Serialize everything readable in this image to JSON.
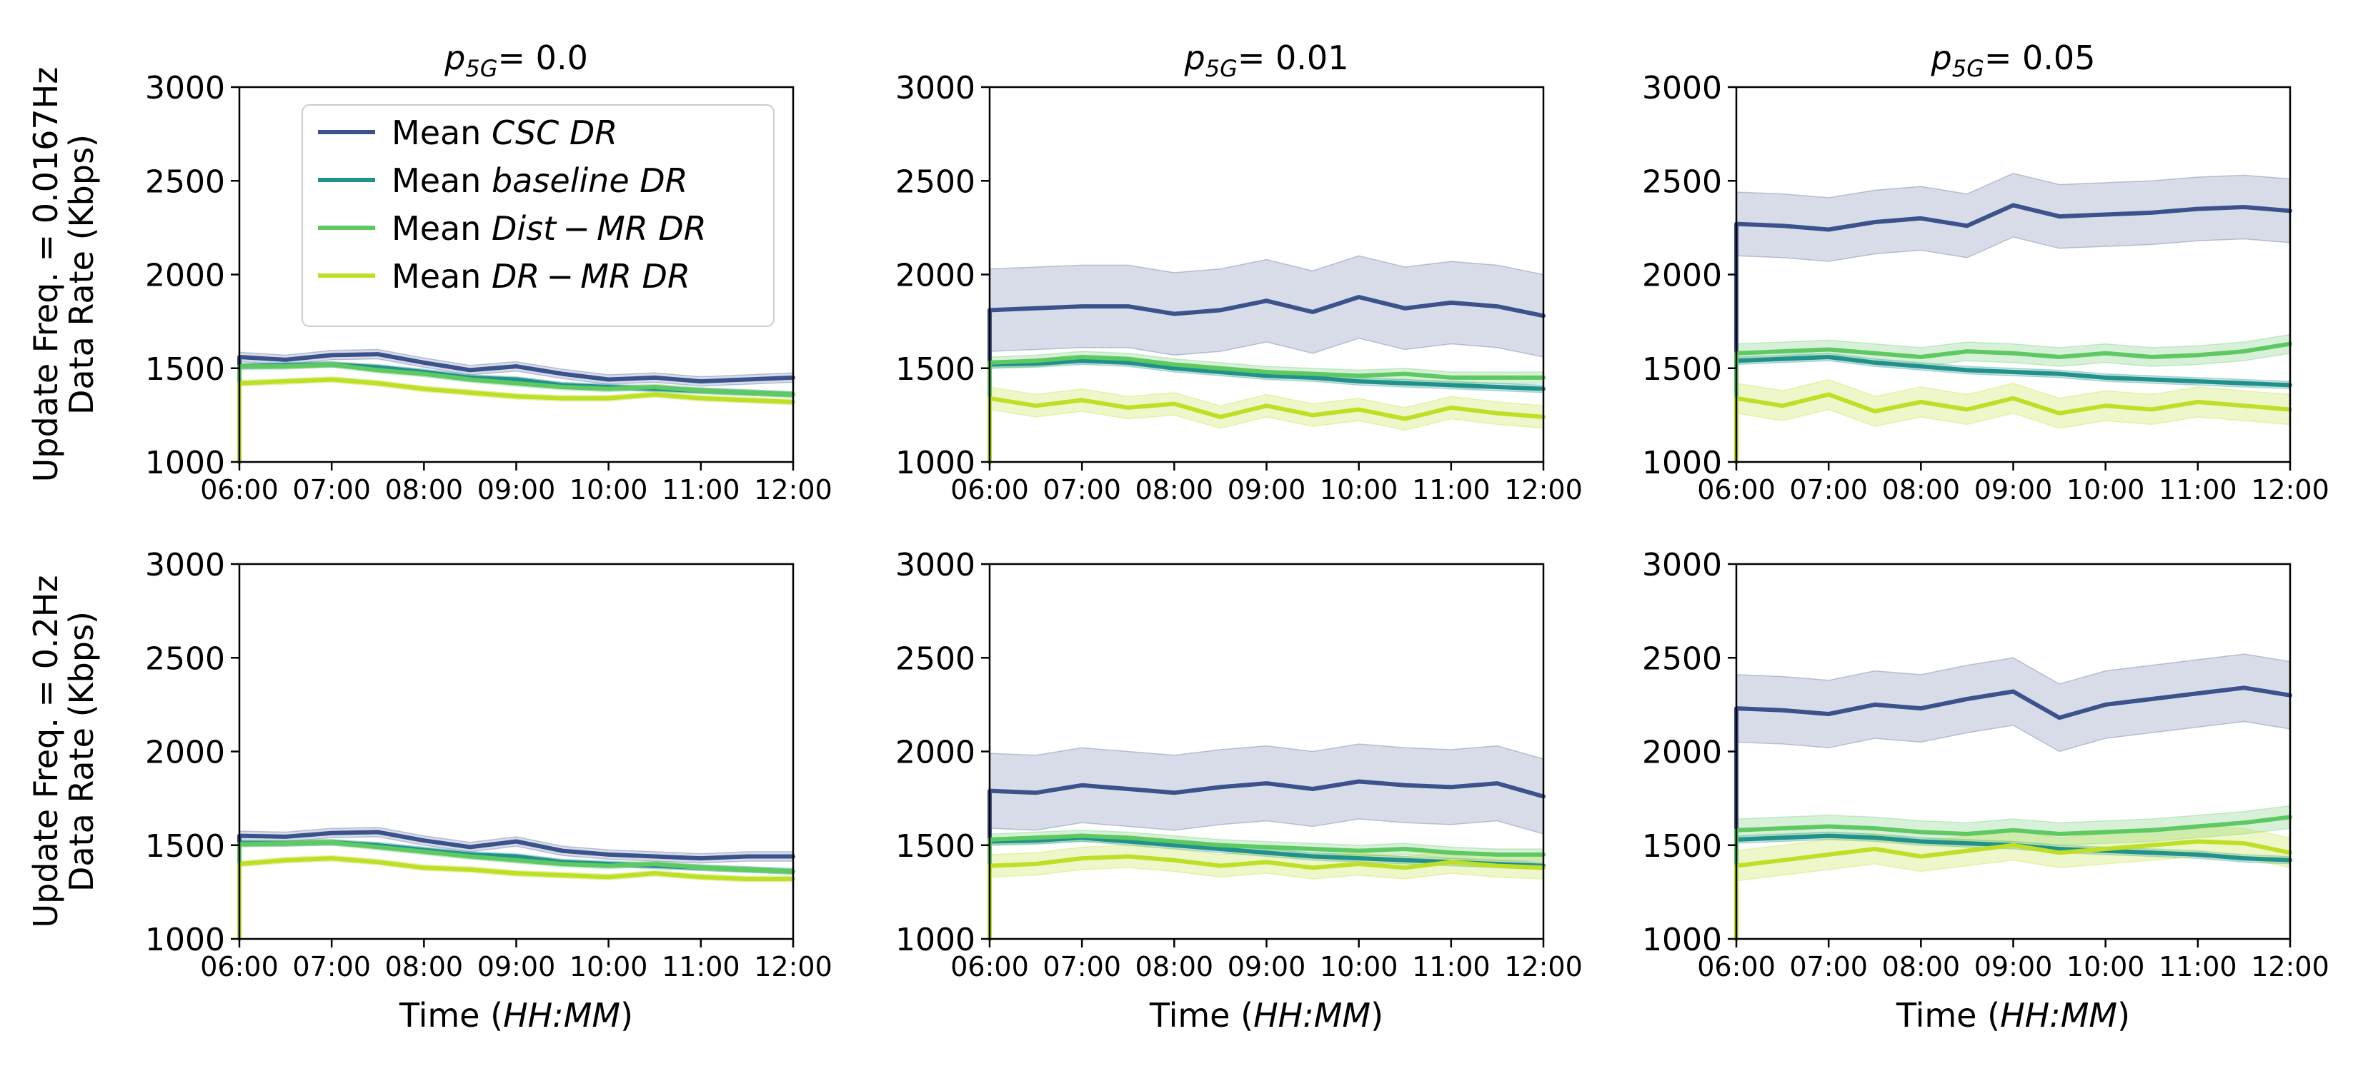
{
  "colors": {
    "csc": "#3b528b",
    "baseline": "#21918c",
    "dist": "#5ec962",
    "drmr": "#bddf26",
    "axis": "#000000"
  },
  "legend": [
    {
      "prefix": "Mean ",
      "name": "CSC DR",
      "series": "csc"
    },
    {
      "prefix": "Mean ",
      "name": "baseline DR",
      "series": "baseline"
    },
    {
      "prefix": "Mean ",
      "name": "Dist − MR DR",
      "series": "dist"
    },
    {
      "prefix": "Mean ",
      "name": "DR − MR DR",
      "series": "drmr"
    }
  ],
  "chart_data": [
    {
      "type": "line",
      "title": {
        "var": "p",
        "sub": "5G",
        "rest": "= 0.0"
      },
      "ylabel_lines": [
        "Update Freq. = 0.0167Hz",
        "Data Rate (Kbps)"
      ],
      "xlabel": "",
      "x_ticks": [
        "06:00",
        "07:00",
        "08:00",
        "09:00",
        "10:00",
        "11:00",
        "12:00"
      ],
      "y_ticks": [
        "1000",
        "1500",
        "2000",
        "2500",
        "3000"
      ],
      "xlim": [
        0,
        6
      ],
      "ylim": [
        1000,
        3000
      ],
      "x_hours": [
        0,
        0.5,
        1,
        1.5,
        2,
        2.5,
        3,
        3.5,
        4,
        4.5,
        5,
        5.5,
        6
      ],
      "series": [
        {
          "key": "csc",
          "name": "Mean CSC DR",
          "values": [
            1560,
            1545,
            1570,
            1575,
            1530,
            1490,
            1510,
            1470,
            1440,
            1450,
            1430,
            1440,
            1450
          ],
          "band": 25
        },
        {
          "key": "baseline",
          "name": "Mean baseline DR",
          "values": [
            1510,
            1515,
            1520,
            1505,
            1480,
            1450,
            1440,
            1410,
            1400,
            1390,
            1380,
            1370,
            1360
          ],
          "band": 15
        },
        {
          "key": "dist",
          "name": "Mean Dist-MR DR",
          "values": [
            1510,
            1510,
            1520,
            1490,
            1470,
            1440,
            1420,
            1400,
            1390,
            1400,
            1380,
            1370,
            1360
          ],
          "band": 15
        },
        {
          "key": "drmr",
          "name": "Mean DR-MR DR",
          "values": [
            1420,
            1430,
            1440,
            1420,
            1390,
            1370,
            1350,
            1340,
            1340,
            1360,
            1340,
            1330,
            1320
          ],
          "band": 15
        }
      ]
    },
    {
      "type": "line",
      "title": {
        "var": "p",
        "sub": "5G",
        "rest": "= 0.01"
      },
      "ylabel_lines": [],
      "xlabel": "",
      "x_ticks": [
        "06:00",
        "07:00",
        "08:00",
        "09:00",
        "10:00",
        "11:00",
        "12:00"
      ],
      "y_ticks": [
        "1000",
        "1500",
        "2000",
        "2500",
        "3000"
      ],
      "xlim": [
        0,
        6
      ],
      "ylim": [
        1000,
        3000
      ],
      "x_hours": [
        0,
        0.5,
        1,
        1.5,
        2,
        2.5,
        3,
        3.5,
        4,
        4.5,
        5,
        5.5,
        6
      ],
      "series": [
        {
          "key": "csc",
          "name": "Mean CSC DR",
          "values": [
            1810,
            1820,
            1830,
            1830,
            1790,
            1810,
            1860,
            1800,
            1880,
            1820,
            1850,
            1830,
            1780
          ],
          "band": 220
        },
        {
          "key": "baseline",
          "name": "Mean baseline DR",
          "values": [
            1520,
            1525,
            1540,
            1530,
            1500,
            1480,
            1460,
            1450,
            1430,
            1420,
            1410,
            1400,
            1390
          ],
          "band": 20
        },
        {
          "key": "dist",
          "name": "Mean Dist-MR DR",
          "values": [
            1530,
            1540,
            1560,
            1550,
            1520,
            1500,
            1480,
            1470,
            1460,
            1470,
            1450,
            1450,
            1450
          ],
          "band": 30
        },
        {
          "key": "drmr",
          "name": "Mean DR-MR DR",
          "values": [
            1340,
            1300,
            1330,
            1290,
            1310,
            1240,
            1300,
            1250,
            1280,
            1230,
            1290,
            1260,
            1240
          ],
          "band": 60
        }
      ]
    },
    {
      "type": "line",
      "title": {
        "var": "p",
        "sub": "5G",
        "rest": "= 0.05"
      },
      "ylabel_lines": [],
      "xlabel": "",
      "x_ticks": [
        "06:00",
        "07:00",
        "08:00",
        "09:00",
        "10:00",
        "11:00",
        "12:00"
      ],
      "y_ticks": [
        "1000",
        "1500",
        "2000",
        "2500",
        "3000"
      ],
      "xlim": [
        0,
        6
      ],
      "ylim": [
        1000,
        3000
      ],
      "x_hours": [
        0,
        0.5,
        1,
        1.5,
        2,
        2.5,
        3,
        3.5,
        4,
        4.5,
        5,
        5.5,
        6
      ],
      "series": [
        {
          "key": "csc",
          "name": "Mean CSC DR",
          "values": [
            2270,
            2260,
            2240,
            2280,
            2300,
            2260,
            2370,
            2310,
            2320,
            2330,
            2350,
            2360,
            2340
          ],
          "band": 170
        },
        {
          "key": "baseline",
          "name": "Mean baseline DR",
          "values": [
            1540,
            1550,
            1560,
            1530,
            1510,
            1490,
            1480,
            1470,
            1450,
            1440,
            1430,
            1420,
            1410
          ],
          "band": 20
        },
        {
          "key": "dist",
          "name": "Mean Dist-MR DR",
          "values": [
            1580,
            1590,
            1600,
            1580,
            1560,
            1590,
            1580,
            1560,
            1580,
            1560,
            1570,
            1590,
            1630
          ],
          "band": 50
        },
        {
          "key": "drmr",
          "name": "Mean DR-MR DR",
          "values": [
            1340,
            1300,
            1360,
            1270,
            1320,
            1280,
            1340,
            1260,
            1300,
            1280,
            1320,
            1300,
            1280
          ],
          "band": 80
        }
      ]
    },
    {
      "type": "line",
      "title": null,
      "ylabel_lines": [
        "Update Freq. = 0.2Hz",
        "Data Rate (Kbps)"
      ],
      "xlabel": "Time (HH:MM)",
      "x_ticks": [
        "06:00",
        "07:00",
        "08:00",
        "09:00",
        "10:00",
        "11:00",
        "12:00"
      ],
      "y_ticks": [
        "1000",
        "1500",
        "2000",
        "2500",
        "3000"
      ],
      "xlim": [
        0,
        6
      ],
      "ylim": [
        1000,
        3000
      ],
      "x_hours": [
        0,
        0.5,
        1,
        1.5,
        2,
        2.5,
        3,
        3.5,
        4,
        4.5,
        5,
        5.5,
        6
      ],
      "series": [
        {
          "key": "csc",
          "name": "Mean CSC DR",
          "values": [
            1550,
            1545,
            1565,
            1570,
            1525,
            1490,
            1520,
            1470,
            1450,
            1440,
            1430,
            1440,
            1440
          ],
          "band": 25
        },
        {
          "key": "baseline",
          "name": "Mean baseline DR",
          "values": [
            1510,
            1510,
            1515,
            1500,
            1475,
            1450,
            1440,
            1410,
            1400,
            1390,
            1380,
            1370,
            1360
          ],
          "band": 15
        },
        {
          "key": "dist",
          "name": "Mean Dist-MR DR",
          "values": [
            1505,
            1510,
            1515,
            1490,
            1465,
            1440,
            1420,
            1400,
            1390,
            1400,
            1380,
            1370,
            1360
          ],
          "band": 15
        },
        {
          "key": "drmr",
          "name": "Mean DR-MR DR",
          "values": [
            1400,
            1420,
            1430,
            1410,
            1380,
            1370,
            1350,
            1340,
            1330,
            1350,
            1330,
            1320,
            1320
          ],
          "band": 15
        }
      ]
    },
    {
      "type": "line",
      "title": null,
      "ylabel_lines": [],
      "xlabel": "Time (HH:MM)",
      "x_ticks": [
        "06:00",
        "07:00",
        "08:00",
        "09:00",
        "10:00",
        "11:00",
        "12:00"
      ],
      "y_ticks": [
        "1000",
        "1500",
        "2000",
        "2500",
        "3000"
      ],
      "xlim": [
        0,
        6
      ],
      "ylim": [
        1000,
        3000
      ],
      "x_hours": [
        0,
        0.5,
        1,
        1.5,
        2,
        2.5,
        3,
        3.5,
        4,
        4.5,
        5,
        5.5,
        6
      ],
      "series": [
        {
          "key": "csc",
          "name": "Mean CSC DR",
          "values": [
            1790,
            1780,
            1820,
            1800,
            1780,
            1810,
            1830,
            1800,
            1840,
            1820,
            1810,
            1830,
            1760
          ],
          "band": 200
        },
        {
          "key": "baseline",
          "name": "Mean baseline DR",
          "values": [
            1520,
            1525,
            1540,
            1520,
            1500,
            1480,
            1460,
            1440,
            1430,
            1420,
            1410,
            1400,
            1390
          ],
          "band": 20
        },
        {
          "key": "dist",
          "name": "Mean Dist-MR DR",
          "values": [
            1530,
            1540,
            1550,
            1540,
            1520,
            1500,
            1490,
            1480,
            1470,
            1480,
            1460,
            1450,
            1450
          ],
          "band": 30
        },
        {
          "key": "drmr",
          "name": "Mean DR-MR DR",
          "values": [
            1390,
            1400,
            1430,
            1440,
            1420,
            1390,
            1410,
            1380,
            1400,
            1380,
            1410,
            1390,
            1380
          ],
          "band": 60
        }
      ]
    },
    {
      "type": "line",
      "title": null,
      "ylabel_lines": [],
      "xlabel": "Time (HH:MM)",
      "x_ticks": [
        "06:00",
        "07:00",
        "08:00",
        "09:00",
        "10:00",
        "11:00",
        "12:00"
      ],
      "y_ticks": [
        "1000",
        "1500",
        "2000",
        "2500",
        "3000"
      ],
      "xlim": [
        0,
        6
      ],
      "ylim": [
        1000,
        3000
      ],
      "x_hours": [
        0,
        0.5,
        1,
        1.5,
        2,
        2.5,
        3,
        3.5,
        4,
        4.5,
        5,
        5.5,
        6
      ],
      "series": [
        {
          "key": "csc",
          "name": "Mean CSC DR",
          "values": [
            2230,
            2220,
            2200,
            2250,
            2230,
            2280,
            2320,
            2180,
            2250,
            2280,
            2310,
            2340,
            2300
          ],
          "band": 180
        },
        {
          "key": "baseline",
          "name": "Mean baseline DR",
          "values": [
            1530,
            1540,
            1550,
            1540,
            1520,
            1510,
            1500,
            1480,
            1470,
            1460,
            1450,
            1430,
            1420
          ],
          "band": 20
        },
        {
          "key": "dist",
          "name": "Mean Dist-MR DR",
          "values": [
            1580,
            1590,
            1600,
            1590,
            1570,
            1560,
            1580,
            1560,
            1570,
            1580,
            1600,
            1620,
            1650
          ],
          "band": 60
        },
        {
          "key": "drmr",
          "name": "Mean DR-MR DR",
          "values": [
            1390,
            1420,
            1450,
            1480,
            1440,
            1470,
            1500,
            1460,
            1480,
            1500,
            1520,
            1510,
            1460
          ],
          "band": 80
        }
      ]
    }
  ]
}
